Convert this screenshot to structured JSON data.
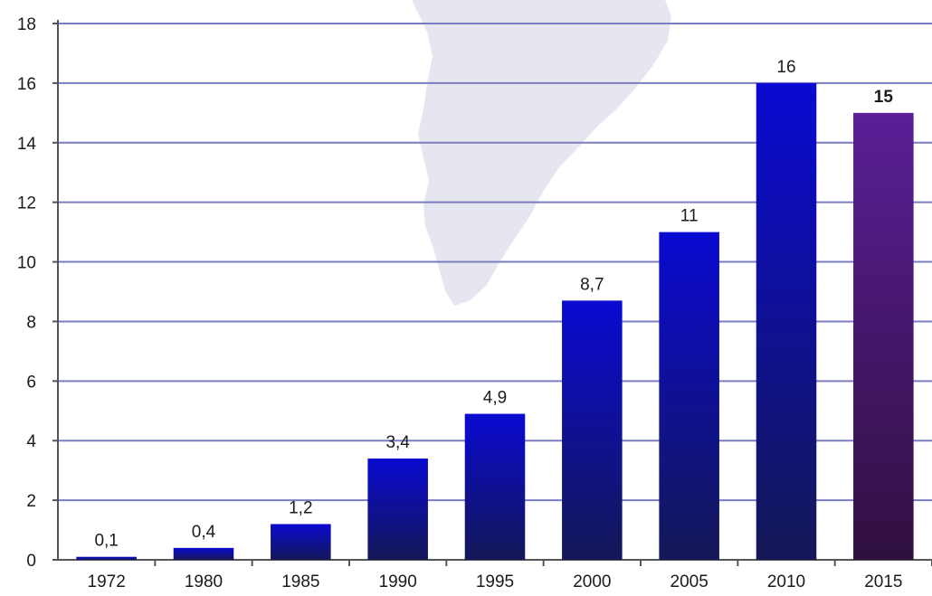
{
  "chart_data": {
    "type": "bar",
    "title": "",
    "xlabel": "",
    "ylabel": "",
    "categories": [
      "1972",
      "1980",
      "1985",
      "1990",
      "1995",
      "2000",
      "2005",
      "2010",
      "2015"
    ],
    "values": [
      0.1,
      0.4,
      1.2,
      3.4,
      4.9,
      8.7,
      11,
      16,
      15
    ],
    "value_labels": [
      "0,1",
      "0,4",
      "1,2",
      "3,4",
      "4,9",
      "8,7",
      "11",
      "16",
      "15"
    ],
    "ylim": [
      0,
      18
    ],
    "yticks": [
      0,
      2,
      4,
      6,
      8,
      10,
      12,
      14,
      16,
      18
    ],
    "grid": true,
    "legend": "none",
    "colors": {
      "bar_top": "#0a0ad2",
      "bar_bottom": "#141856",
      "highlight_bar_top": "#5a1e96",
      "highlight_bar_bottom": "#301040",
      "highlight_label": "#1a1a8c",
      "gridline": "#7c7cc0",
      "axis": "#555555",
      "background_map": "#e6e6f0"
    },
    "highlight_category": "2015"
  }
}
